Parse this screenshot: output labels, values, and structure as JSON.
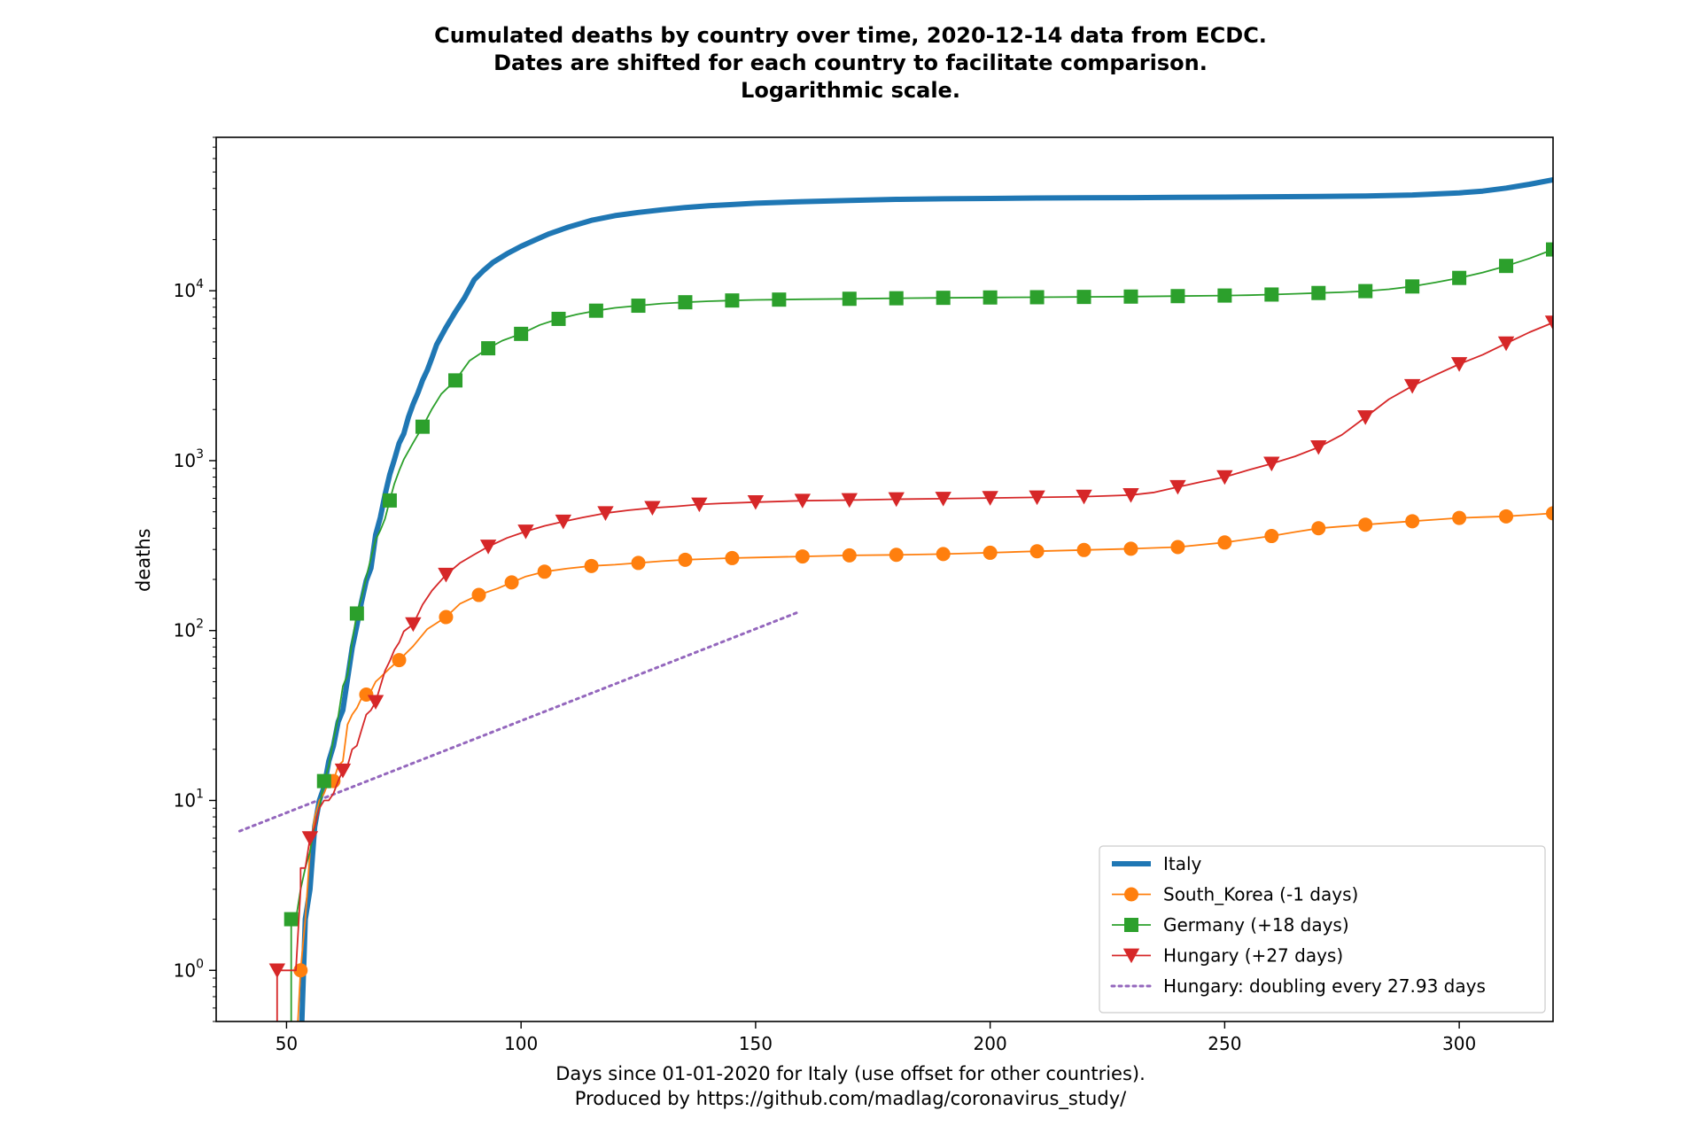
{
  "chart_data": {
    "type": "line",
    "title": [
      "Cumulated deaths by country over time, 2020-12-14 data from ECDC.",
      "Dates are shifted for each country to facilitate comparison.",
      "Logarithmic scale."
    ],
    "xlabel": [
      "Days since 01-01-2020 for Italy (use offset for other countries).",
      "Produced by https://github.com/madlag/coronavirus_study/"
    ],
    "ylabel": "deaths",
    "xlim": [
      35,
      320
    ],
    "ylim": [
      0.5,
      80000
    ],
    "yscale": "log",
    "grid": false,
    "legend_position": "lower-right",
    "xticks": [
      50,
      100,
      150,
      200,
      250,
      300
    ],
    "yticks": [
      1,
      10,
      100,
      1000,
      10000
    ],
    "series": [
      {
        "name": "Italy",
        "color": "#1f77b4",
        "marker": "none",
        "style": "solid-thick",
        "points": [
          [
            53,
            0.3
          ],
          [
            54,
            2
          ],
          [
            55,
            3
          ],
          [
            56,
            7
          ],
          [
            57,
            10
          ],
          [
            58,
            12
          ],
          [
            59,
            17
          ],
          [
            60,
            21
          ],
          [
            61,
            29
          ],
          [
            62,
            34
          ],
          [
            63,
            52
          ],
          [
            64,
            79
          ],
          [
            65,
            107
          ],
          [
            66,
            148
          ],
          [
            67,
            197
          ],
          [
            68,
            233
          ],
          [
            69,
            366
          ],
          [
            70,
            463
          ],
          [
            71,
            631
          ],
          [
            72,
            827
          ],
          [
            73,
            1016
          ],
          [
            74,
            1266
          ],
          [
            75,
            1441
          ],
          [
            76,
            1809
          ],
          [
            77,
            2158
          ],
          [
            78,
            2503
          ],
          [
            79,
            2978
          ],
          [
            80,
            3405
          ],
          [
            81,
            4032
          ],
          [
            82,
            4825
          ],
          [
            84,
            6077
          ],
          [
            86,
            7503
          ],
          [
            88,
            9134
          ],
          [
            90,
            11591
          ],
          [
            92,
            13155
          ],
          [
            94,
            14681
          ],
          [
            97,
            16523
          ],
          [
            100,
            18279
          ],
          [
            103,
            19899
          ],
          [
            106,
            21645
          ],
          [
            110,
            23660
          ],
          [
            115,
            25969
          ],
          [
            120,
            27682
          ],
          [
            125,
            28884
          ],
          [
            130,
            29958
          ],
          [
            135,
            30911
          ],
          [
            140,
            31610
          ],
          [
            145,
            32169
          ],
          [
            150,
            32735
          ],
          [
            160,
            33475
          ],
          [
            170,
            34043
          ],
          [
            180,
            34514
          ],
          [
            190,
            34767
          ],
          [
            200,
            34954
          ],
          [
            210,
            35132
          ],
          [
            220,
            35231
          ],
          [
            230,
            35326
          ],
          [
            240,
            35473
          ],
          [
            250,
            35587
          ],
          [
            260,
            35725
          ],
          [
            270,
            35918
          ],
          [
            280,
            36140
          ],
          [
            290,
            36616
          ],
          [
            300,
            37700
          ],
          [
            305,
            38618
          ],
          [
            310,
            40192
          ],
          [
            315,
            42330
          ],
          [
            320,
            45000
          ]
        ]
      },
      {
        "name": "South_Korea (-1 days)",
        "color": "#ff7f0e",
        "marker": "circle",
        "points": [
          [
            49,
            0.3
          ],
          [
            50,
            0.3
          ],
          [
            52,
            0.3
          ],
          [
            53,
            1
          ],
          [
            54,
            2
          ],
          [
            55,
            5
          ],
          [
            56,
            8
          ],
          [
            57,
            10
          ],
          [
            58,
            11
          ],
          [
            59,
            13
          ],
          [
            60,
            13
          ],
          [
            61,
            16
          ],
          [
            62,
            17
          ],
          [
            63,
            28
          ],
          [
            64,
            32
          ],
          [
            65,
            35
          ],
          [
            66,
            40
          ],
          [
            67,
            42
          ],
          [
            68,
            44
          ],
          [
            69,
            50
          ],
          [
            70,
            53
          ],
          [
            72,
            60
          ],
          [
            74,
            67
          ],
          [
            77,
            81
          ],
          [
            80,
            102
          ],
          [
            84,
            120
          ],
          [
            87,
            144
          ],
          [
            91,
            162
          ],
          [
            95,
            177
          ],
          [
            98,
            192
          ],
          [
            101,
            208
          ],
          [
            105,
            222
          ],
          [
            110,
            232
          ],
          [
            115,
            240
          ],
          [
            120,
            244
          ],
          [
            125,
            250
          ],
          [
            130,
            256
          ],
          [
            135,
            261
          ],
          [
            140,
            264
          ],
          [
            145,
            267
          ],
          [
            150,
            269
          ],
          [
            160,
            273
          ],
          [
            170,
            277
          ],
          [
            180,
            279
          ],
          [
            190,
            282
          ],
          [
            200,
            287
          ],
          [
            210,
            293
          ],
          [
            220,
            298
          ],
          [
            230,
            303
          ],
          [
            240,
            310
          ],
          [
            250,
            330
          ],
          [
            255,
            345
          ],
          [
            260,
            360
          ],
          [
            265,
            380
          ],
          [
            270,
            400
          ],
          [
            275,
            410
          ],
          [
            280,
            420
          ],
          [
            285,
            430
          ],
          [
            290,
            440
          ],
          [
            295,
            450
          ],
          [
            300,
            460
          ],
          [
            305,
            465
          ],
          [
            310,
            470
          ],
          [
            315,
            480
          ],
          [
            320,
            490
          ]
        ]
      },
      {
        "name": "Germany (+18 days)",
        "color": "#2ca02c",
        "marker": "square",
        "points": [
          [
            50,
            0.3
          ],
          [
            51,
            0.3
          ],
          [
            51,
            2
          ],
          [
            52,
            2
          ],
          [
            53,
            3
          ],
          [
            54,
            4
          ],
          [
            55,
            5
          ],
          [
            56,
            7
          ],
          [
            57,
            9
          ],
          [
            58,
            13
          ],
          [
            59,
            16
          ],
          [
            60,
            23
          ],
          [
            61,
            31
          ],
          [
            62,
            47
          ],
          [
            63,
            55
          ],
          [
            64,
            86
          ],
          [
            65,
            126
          ],
          [
            66,
            157
          ],
          [
            67,
            206
          ],
          [
            68,
            267
          ],
          [
            69,
            342
          ],
          [
            70,
            389
          ],
          [
            71,
            455
          ],
          [
            72,
            583
          ],
          [
            73,
            732
          ],
          [
            74,
            872
          ],
          [
            75,
            1017
          ],
          [
            77,
            1275
          ],
          [
            79,
            1584
          ],
          [
            81,
            2016
          ],
          [
            83,
            2469
          ],
          [
            86,
            2967
          ],
          [
            89,
            3868
          ],
          [
            93,
            4586
          ],
          [
            96,
            5086
          ],
          [
            100,
            5575
          ],
          [
            104,
            6288
          ],
          [
            108,
            6831
          ],
          [
            112,
            7266
          ],
          [
            116,
            7634
          ],
          [
            120,
            7935
          ],
          [
            125,
            8168
          ],
          [
            130,
            8411
          ],
          [
            135,
            8557
          ],
          [
            140,
            8674
          ],
          [
            145,
            8765
          ],
          [
            150,
            8830
          ],
          [
            155,
            8870
          ],
          [
            160,
            8914
          ],
          [
            170,
            8968
          ],
          [
            180,
            9033
          ],
          [
            190,
            9087
          ],
          [
            200,
            9131
          ],
          [
            210,
            9161
          ],
          [
            220,
            9200
          ],
          [
            230,
            9240
          ],
          [
            240,
            9299
          ],
          [
            250,
            9371
          ],
          [
            255,
            9420
          ],
          [
            260,
            9500
          ],
          [
            265,
            9600
          ],
          [
            270,
            9700
          ],
          [
            275,
            9800
          ],
          [
            280,
            9950
          ],
          [
            285,
            10200
          ],
          [
            290,
            10600
          ],
          [
            295,
            11200
          ],
          [
            300,
            11900
          ],
          [
            305,
            12800
          ],
          [
            310,
            14000
          ],
          [
            315,
            15500
          ],
          [
            320,
            17500
          ]
        ]
      },
      {
        "name": "Hungary (+27 days)",
        "color": "#d62728",
        "marker": "triangle-down",
        "points": [
          [
            48,
            0.3
          ],
          [
            48,
            1
          ],
          [
            51,
            1
          ],
          [
            52,
            1
          ],
          [
            53,
            3
          ],
          [
            53,
            4
          ],
          [
            54,
            4
          ],
          [
            55,
            6
          ],
          [
            56,
            7
          ],
          [
            57,
            9
          ],
          [
            58,
            10
          ],
          [
            59,
            10
          ],
          [
            60,
            11
          ],
          [
            61,
            13
          ],
          [
            62,
            15
          ],
          [
            63,
            16
          ],
          [
            64,
            20
          ],
          [
            65,
            21
          ],
          [
            66,
            26
          ],
          [
            67,
            32
          ],
          [
            68,
            34
          ],
          [
            69,
            38
          ],
          [
            70,
            47
          ],
          [
            71,
            58
          ],
          [
            72,
            66
          ],
          [
            73,
            77
          ],
          [
            74,
            85
          ],
          [
            75,
            99
          ],
          [
            77,
            109
          ],
          [
            79,
            142
          ],
          [
            81,
            172
          ],
          [
            84,
            213
          ],
          [
            87,
            250
          ],
          [
            90,
            280
          ],
          [
            93,
            312
          ],
          [
            97,
            351
          ],
          [
            101,
            383
          ],
          [
            105,
            413
          ],
          [
            109,
            438
          ],
          [
            113,
            462
          ],
          [
            118,
            491
          ],
          [
            123,
            511
          ],
          [
            128,
            527
          ],
          [
            133,
            538
          ],
          [
            138,
            552
          ],
          [
            143,
            561
          ],
          [
            150,
            570
          ],
          [
            160,
            581
          ],
          [
            170,
            586
          ],
          [
            180,
            593
          ],
          [
            190,
            597
          ],
          [
            200,
            603
          ],
          [
            210,
            608
          ],
          [
            220,
            614
          ],
          [
            230,
            627
          ],
          [
            235,
            650
          ],
          [
            240,
            700
          ],
          [
            245,
            750
          ],
          [
            250,
            800
          ],
          [
            255,
            880
          ],
          [
            260,
            960
          ],
          [
            265,
            1060
          ],
          [
            270,
            1200
          ],
          [
            275,
            1420
          ],
          [
            280,
            1800
          ],
          [
            285,
            2300
          ],
          [
            290,
            2750
          ],
          [
            295,
            3200
          ],
          [
            300,
            3700
          ],
          [
            305,
            4200
          ],
          [
            310,
            4900
          ],
          [
            315,
            5700
          ],
          [
            320,
            6500
          ]
        ]
      },
      {
        "name": "Hungary: doubling every 27.93 days",
        "color": "#9467bd",
        "marker": "none",
        "style": "dotted",
        "points": [
          [
            40,
            6.6
          ],
          [
            159,
            128
          ]
        ]
      }
    ]
  }
}
